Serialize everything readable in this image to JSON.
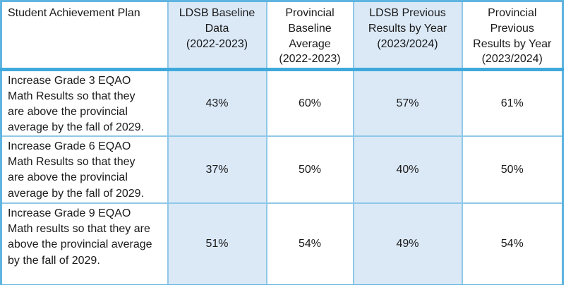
{
  "colors": {
    "outer-border": "#5fb4e0",
    "grid-border": "#8fc8e8",
    "header-rule": "#3fa9dc",
    "shaded-fill": "#dbe9f7",
    "text": "#1a1a1a",
    "background": "#ffffff"
  },
  "table": {
    "headers": [
      {
        "label": "Student Achievement Plan",
        "lines": [
          "Student Achievement Plan"
        ],
        "shaded": false
      },
      {
        "label": "LDSB Baseline Data (2022-2023)",
        "lines": [
          "LDSB Baseline",
          "Data",
          "(2022-2023)"
        ],
        "shaded": true
      },
      {
        "label": "Provincial Baseline Average (2022-2023)",
        "lines": [
          "Provincial",
          "Baseline",
          "Average",
          "(2022-2023)"
        ],
        "shaded": false
      },
      {
        "label": "LDSB Previous Results by Year (2023/2024)",
        "lines": [
          "LDSB Previous",
          "Results by Year",
          "(2023/2024)"
        ],
        "shaded": true
      },
      {
        "label": "Provincial Previous Results by Year (2023/2024)",
        "lines": [
          "Provincial",
          "Previous",
          "Results by Year",
          "(2023/2024)"
        ],
        "shaded": false
      }
    ],
    "rows": [
      {
        "goal": "Increase Grade 3 EQAO Math Results so that they are above the provincial average by the fall of 2029.",
        "goal_lines": [
          "Increase Grade 3 EQAO",
          "Math Results so that they",
          "are above the provincial",
          "average by the fall of 2029."
        ],
        "values": [
          "43%",
          "60%",
          "57%",
          "61%"
        ]
      },
      {
        "goal": "Increase Grade 6 EQAO Math Results so that they are above the provincial average by the fall of 2029.",
        "goal_lines": [
          "Increase Grade 6 EQAO",
          "Math Results so that they",
          "are above the provincial",
          "average by the fall of 2029."
        ],
        "values": [
          "37%",
          "50%",
          "40%",
          "50%"
        ]
      },
      {
        "goal": "Increase Grade 9 EQAO Math results so that they are above the provincial average by the fall of 2029.",
        "goal_lines": [
          "Increase Grade 9 EQAO",
          "Math results so that they are",
          "above the provincial average",
          "by the fall of 2029."
        ],
        "values": [
          "51%",
          "54%",
          "49%",
          "54%"
        ]
      }
    ]
  }
}
